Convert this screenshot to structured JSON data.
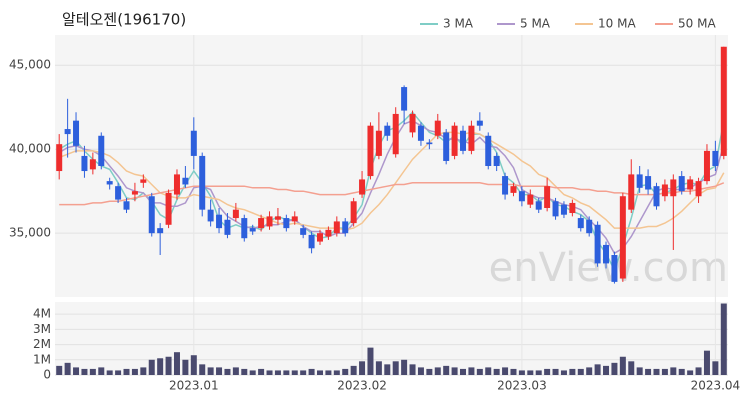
{
  "chart_data": {
    "type": "candlestick",
    "title": "알테오젠(196170)",
    "watermark": "enView.com",
    "categories": [
      null,
      null,
      null,
      null,
      null,
      null,
      null,
      null,
      null,
      null,
      null,
      null,
      null,
      null,
      null,
      null,
      "2023.01",
      null,
      null,
      null,
      null,
      null,
      null,
      null,
      null,
      null,
      null,
      null,
      null,
      null,
      null,
      null,
      null,
      null,
      null,
      null,
      "2023.02",
      null,
      null,
      null,
      null,
      null,
      null,
      null,
      null,
      null,
      null,
      null,
      null,
      null,
      null,
      null,
      null,
      null,
      null,
      "2023.03",
      null,
      null,
      null,
      null,
      null,
      null,
      null,
      null,
      null,
      null,
      null,
      null,
      null,
      null,
      null,
      null,
      null,
      null,
      null,
      null,
      null,
      null,
      "2023.04",
      null
    ],
    "open": [
      38700,
      41200,
      41700,
      39600,
      38800,
      40800,
      38100,
      37800,
      36900,
      37300,
      38000,
      37200,
      35300,
      35500,
      37300,
      38300,
      41100,
      39600,
      36400,
      36100,
      35800,
      35900,
      35900,
      35300,
      35300,
      35400,
      35800,
      35900,
      35700,
      35300,
      34900,
      34500,
      34800,
      35000,
      35700,
      35600,
      37300,
      38400,
      39600,
      41400,
      39700,
      43700,
      41000,
      41400,
      40400,
      40800,
      41000,
      39600,
      41100,
      39900,
      41700,
      40800,
      39600,
      38400,
      37400,
      37500,
      36700,
      36900,
      36500,
      36900,
      36700,
      36200,
      35900,
      35800,
      35500,
      34300,
      33700,
      32300,
      36400,
      38500,
      38400,
      37800,
      37200,
      37200,
      38400,
      37600,
      37200,
      38100,
      39900,
      39600
    ],
    "high": [
      40900,
      43000,
      42200,
      40200,
      39800,
      41000,
      38300,
      38000,
      37100,
      38000,
      38500,
      37400,
      35600,
      37600,
      38800,
      39000,
      41900,
      39800,
      37000,
      36500,
      36200,
      36800,
      36100,
      35500,
      36100,
      36300,
      36500,
      36100,
      36300,
      35500,
      35100,
      35200,
      35400,
      36000,
      35900,
      37100,
      38700,
      41600,
      42200,
      41600,
      42500,
      43800,
      42300,
      41600,
      40600,
      42100,
      41200,
      41600,
      41400,
      41700,
      42200,
      41000,
      39800,
      38600,
      38000,
      37800,
      37600,
      37100,
      38300,
      37100,
      36900,
      37000,
      36100,
      36000,
      35700,
      34500,
      33900,
      37400,
      39400,
      39000,
      38800,
      38000,
      38200,
      38500,
      38700,
      38400,
      38300,
      40300,
      40500,
      46100
    ],
    "low": [
      38200,
      39500,
      39800,
      38300,
      38500,
      38800,
      37600,
      36800,
      36200,
      36900,
      37700,
      34800,
      33700,
      35300,
      37000,
      37700,
      38800,
      36000,
      35400,
      35000,
      34700,
      35700,
      34500,
      34900,
      35100,
      35200,
      35500,
      35100,
      35500,
      34700,
      33800,
      34300,
      34600,
      34800,
      34800,
      35400,
      37100,
      38200,
      39400,
      40500,
      39500,
      41500,
      40700,
      40200,
      40000,
      40600,
      39100,
      39400,
      39700,
      39700,
      41100,
      38800,
      38700,
      37000,
      37200,
      36600,
      36500,
      36200,
      36300,
      35800,
      35900,
      36000,
      35100,
      34800,
      33000,
      32900,
      32000,
      32100,
      36200,
      37400,
      37300,
      36400,
      36900,
      34000,
      37300,
      37300,
      36800,
      37900,
      38700,
      39400
    ],
    "close": [
      40300,
      40900,
      40200,
      38700,
      39400,
      39000,
      37900,
      37000,
      36400,
      37500,
      38200,
      35000,
      35000,
      37400,
      38500,
      37900,
      39600,
      36400,
      35700,
      35300,
      34900,
      36400,
      34700,
      35100,
      35900,
      36000,
      36000,
      35300,
      36000,
      34900,
      34100,
      35000,
      35200,
      35700,
      35000,
      36900,
      38200,
      41400,
      41100,
      40800,
      42100,
      42300,
      42100,
      40500,
      40300,
      41700,
      39300,
      41400,
      39900,
      41400,
      41400,
      39000,
      39000,
      37300,
      37800,
      36900,
      37300,
      36400,
      37800,
      36000,
      36100,
      36800,
      35300,
      35000,
      33200,
      33200,
      32100,
      37200,
      38500,
      37700,
      37600,
      36600,
      37900,
      38200,
      37500,
      38200,
      38100,
      39900,
      39000,
      46100
    ],
    "volume": [
      600000,
      800000,
      500000,
      400000,
      400000,
      500000,
      300000,
      300000,
      400000,
      400000,
      500000,
      1000000,
      1100000,
      1200000,
      1500000,
      1000000,
      1300000,
      700000,
      500000,
      500000,
      400000,
      500000,
      400000,
      300000,
      400000,
      300000,
      300000,
      300000,
      300000,
      300000,
      400000,
      300000,
      300000,
      300000,
      400000,
      600000,
      900000,
      1800000,
      900000,
      700000,
      900000,
      1000000,
      700000,
      500000,
      400000,
      500000,
      600000,
      500000,
      400000,
      500000,
      400000,
      500000,
      400000,
      500000,
      400000,
      300000,
      300000,
      300000,
      400000,
      400000,
      300000,
      400000,
      400000,
      500000,
      700000,
      600000,
      800000,
      1200000,
      900000,
      500000,
      400000,
      400000,
      400000,
      500000,
      400000,
      300000,
      500000,
      1600000,
      900000,
      4700000
    ],
    "up_color": "#ee2d2d",
    "down_color": "#2d5fdc",
    "volume_color": "#4a4a6e",
    "series": [
      {
        "name": "3 MA",
        "color": "#7fcdc6",
        "values": [
          40000,
          40300,
          40500,
          39900,
          39400,
          39000,
          38800,
          38000,
          37100,
          37000,
          37400,
          36900,
          36100,
          35800,
          37000,
          37900,
          38700,
          38000,
          37200,
          35800,
          35300,
          35500,
          35300,
          35400,
          35200,
          35700,
          36000,
          35800,
          35800,
          35400,
          35000,
          34700,
          34800,
          35300,
          35300,
          35900,
          36700,
          38800,
          40200,
          41100,
          41300,
          41700,
          42200,
          41600,
          41000,
          40800,
          40400,
          40800,
          40200,
          40900,
          40900,
          40600,
          39800,
          38400,
          38000,
          37300,
          37300,
          36900,
          37200,
          36700,
          36600,
          36300,
          36100,
          35700,
          34500,
          33800,
          32800,
          34200,
          35900,
          37800,
          37900,
          37300,
          37400,
          37600,
          37900,
          38000,
          37900,
          38700,
          39000,
          41700
        ]
      },
      {
        "name": "5 MA",
        "color": "#ae97cc",
        "values": [
          39800,
          40100,
          40200,
          40000,
          39900,
          39600,
          39000,
          38400,
          37700,
          37500,
          37400,
          36800,
          36800,
          36600,
          36600,
          36800,
          37700,
          37800,
          37600,
          36600,
          36000,
          35700,
          35400,
          35300,
          35400,
          35500,
          35500,
          35700,
          35800,
          35400,
          35100,
          35100,
          34800,
          35000,
          35000,
          35600,
          36200,
          37400,
          38500,
          39700,
          40700,
          41500,
          41700,
          41400,
          41100,
          41000,
          40600,
          40600,
          40500,
          40300,
          40700,
          40200,
          40100,
          39600,
          38900,
          37600,
          37300,
          37100,
          37100,
          36900,
          36700,
          36600,
          36400,
          35800,
          35300,
          34700,
          33800,
          34100,
          34800,
          35700,
          36600,
          37500,
          37700,
          37600,
          37600,
          37700,
          38000,
          38300,
          38500,
          40300
        ]
      },
      {
        "name": "10 MA",
        "color": "#f4c592",
        "values": [
          39500,
          39700,
          39900,
          39900,
          39900,
          39800,
          39600,
          39200,
          38700,
          38500,
          38400,
          37900,
          37400,
          37200,
          37100,
          37100,
          37300,
          37200,
          37100,
          37000,
          36700,
          36500,
          36400,
          36200,
          36000,
          35800,
          35600,
          35500,
          35600,
          35500,
          35400,
          35300,
          35300,
          35300,
          35200,
          35300,
          35600,
          36200,
          36700,
          37300,
          38000,
          38700,
          39400,
          39900,
          40400,
          40900,
          41000,
          41000,
          40900,
          41000,
          40900,
          40600,
          40300,
          40000,
          39700,
          39300,
          39000,
          38500,
          38300,
          37800,
          37300,
          37100,
          36800,
          36600,
          36200,
          35800,
          35300,
          35300,
          35300,
          35300,
          35400,
          35400,
          35600,
          35900,
          36300,
          36800,
          37300,
          37600,
          37700,
          38600
        ]
      },
      {
        "name": "50 MA",
        "color": "#f4a090",
        "values": [
          36700,
          36700,
          36700,
          36700,
          36800,
          36800,
          36900,
          36900,
          37000,
          37100,
          37200,
          37300,
          37400,
          37500,
          37600,
          37700,
          37800,
          37800,
          37800,
          37800,
          37800,
          37800,
          37800,
          37700,
          37700,
          37700,
          37600,
          37600,
          37500,
          37500,
          37400,
          37300,
          37300,
          37300,
          37300,
          37400,
          37500,
          37600,
          37700,
          37800,
          37900,
          37900,
          38000,
          38000,
          38000,
          38000,
          38000,
          38000,
          38000,
          38000,
          38000,
          37900,
          37900,
          37900,
          37900,
          37800,
          37800,
          37800,
          37800,
          37700,
          37700,
          37700,
          37600,
          37600,
          37500,
          37500,
          37400,
          37400,
          37300,
          37300,
          37300,
          37300,
          37400,
          37400,
          37500,
          37500,
          37600,
          37700,
          37800,
          38000
        ]
      }
    ],
    "ylim": [
      31200,
      46800
    ],
    "yticks": [
      {
        "value": 35000,
        "label": "35,000"
      },
      {
        "value": 40000,
        "label": "40,000"
      },
      {
        "value": 45000,
        "label": "45,000"
      }
    ],
    "volume_ylim": [
      0,
      4800000
    ],
    "volume_yticks": [
      0,
      {
        "value": 1000000,
        "label": "1M"
      },
      {
        "value": 2000000,
        "label": "2M"
      },
      {
        "value": 3000000,
        "label": "3M"
      },
      {
        "value": 4000000,
        "label": "4M"
      }
    ],
    "grid": true
  }
}
